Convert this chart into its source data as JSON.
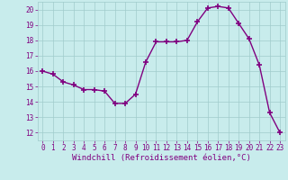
{
  "x": [
    0,
    1,
    2,
    3,
    4,
    5,
    6,
    7,
    8,
    9,
    10,
    11,
    12,
    13,
    14,
    15,
    16,
    17,
    18,
    19,
    20,
    21,
    22,
    23
  ],
  "y": [
    16.0,
    15.8,
    15.3,
    15.1,
    14.8,
    14.8,
    14.7,
    13.9,
    13.9,
    14.5,
    16.6,
    17.9,
    17.9,
    17.9,
    18.0,
    19.2,
    20.1,
    20.2,
    20.1,
    19.1,
    18.1,
    16.4,
    13.3,
    12.0
  ],
  "line_color": "#800080",
  "marker": "+",
  "marker_size": 4.0,
  "marker_lw": 1.2,
  "bg_color": "#c8ecec",
  "grid_color": "#a0cccc",
  "ylabel_ticks": [
    12,
    13,
    14,
    15,
    16,
    17,
    18,
    19,
    20
  ],
  "xlabel_ticks": [
    0,
    1,
    2,
    3,
    4,
    5,
    6,
    7,
    8,
    9,
    10,
    11,
    12,
    13,
    14,
    15,
    16,
    17,
    18,
    19,
    20,
    21,
    22,
    23
  ],
  "xlabel_label": "Windchill (Refroidissement éolien,°C)",
  "ylim": [
    11.5,
    20.5
  ],
  "xlim": [
    -0.5,
    23.5
  ],
  "tick_color": "#800080",
  "label_color": "#800080",
  "tick_fontsize": 5.5,
  "xlabel_fontsize": 6.5,
  "line_width": 1.0
}
